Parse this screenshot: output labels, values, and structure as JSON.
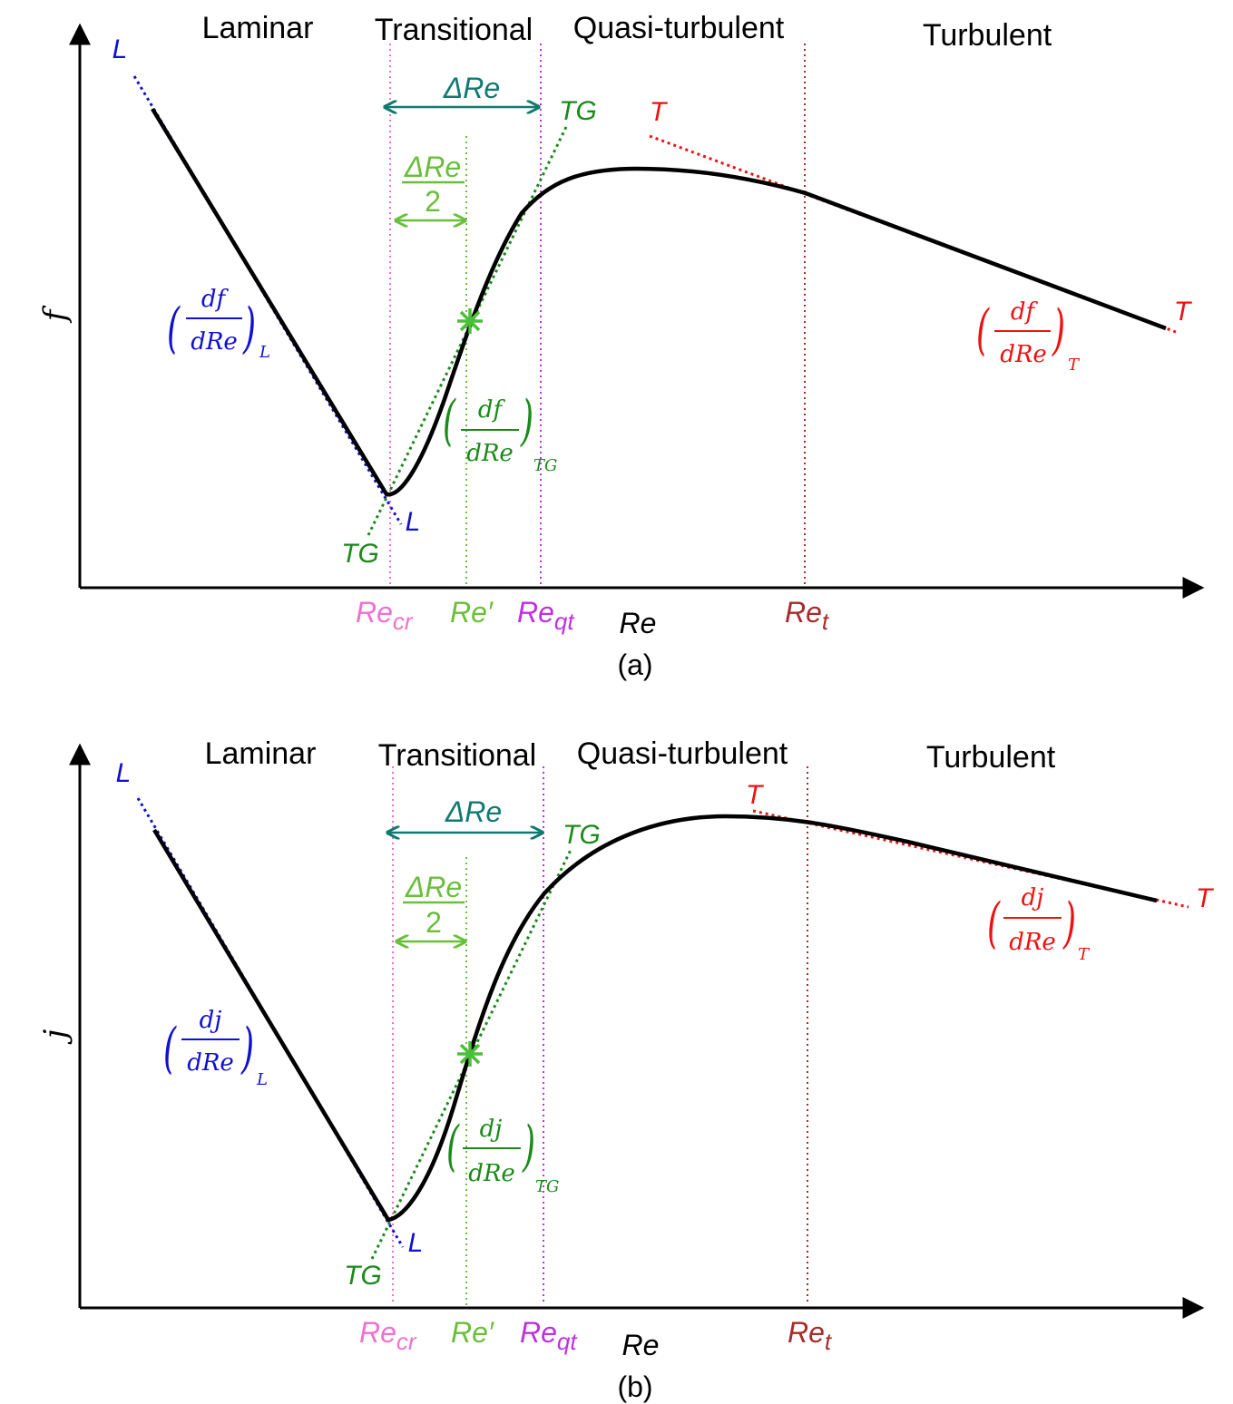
{
  "colors": {
    "laminar": "#1010d0",
    "transitional": "#1a8a1a",
    "turbulent": "#ee1111",
    "delta_re": "#107a70",
    "half_delta": "#6abf3a",
    "re_cr": "#f070d0",
    "re_qt": "#c030e0",
    "re_t": "#a82a2a",
    "curve": "#000000"
  },
  "panels": [
    {
      "id": "a",
      "caption": "(a)",
      "y_axis_label": "f",
      "x_axis_label": "Re",
      "regions": [
        "Laminar",
        "Transitional",
        "Quasi-turbulent",
        "Turbulent"
      ],
      "delta_re_label": "ΔRe",
      "half_delta_num": "ΔRe",
      "half_delta_den": "2",
      "line_labels": {
        "laminar": "L",
        "transitional": "TG",
        "turbulent": "T"
      },
      "slope_laminar": {
        "num": "df",
        "den": "dRe",
        "sub": "L"
      },
      "slope_transitional": {
        "num": "df",
        "den": "dRe",
        "sub": "TG"
      },
      "slope_turbulent": {
        "num": "df",
        "den": "dRe",
        "sub": "T"
      },
      "x_ticks": {
        "re_cr": {
          "base": "Re",
          "sub": "cr"
        },
        "re_prime": "Re′",
        "re_qt": {
          "base": "Re",
          "sub": "qt"
        },
        "re_t": {
          "base": "Re",
          "sub": "t"
        }
      }
    },
    {
      "id": "b",
      "caption": "(b)",
      "y_axis_label": "j",
      "x_axis_label": "Re",
      "regions": [
        "Laminar",
        "Transitional",
        "Quasi-turbulent",
        "Turbulent"
      ],
      "delta_re_label": "ΔRe",
      "half_delta_num": "ΔRe",
      "half_delta_den": "2",
      "line_labels": {
        "laminar": "L",
        "transitional": "TG",
        "turbulent": "T"
      },
      "slope_laminar": {
        "num": "dj",
        "den": "dRe",
        "sub": "L"
      },
      "slope_transitional": {
        "num": "dj",
        "den": "dRe",
        "sub": "TG"
      },
      "slope_turbulent": {
        "num": "dj",
        "den": "dRe",
        "sub": "T"
      },
      "x_ticks": {
        "re_cr": {
          "base": "Re",
          "sub": "cr"
        },
        "re_prime": "Re′",
        "re_qt": {
          "base": "Re",
          "sub": "qt"
        },
        "re_t": {
          "base": "Re",
          "sub": "t"
        }
      }
    }
  ]
}
